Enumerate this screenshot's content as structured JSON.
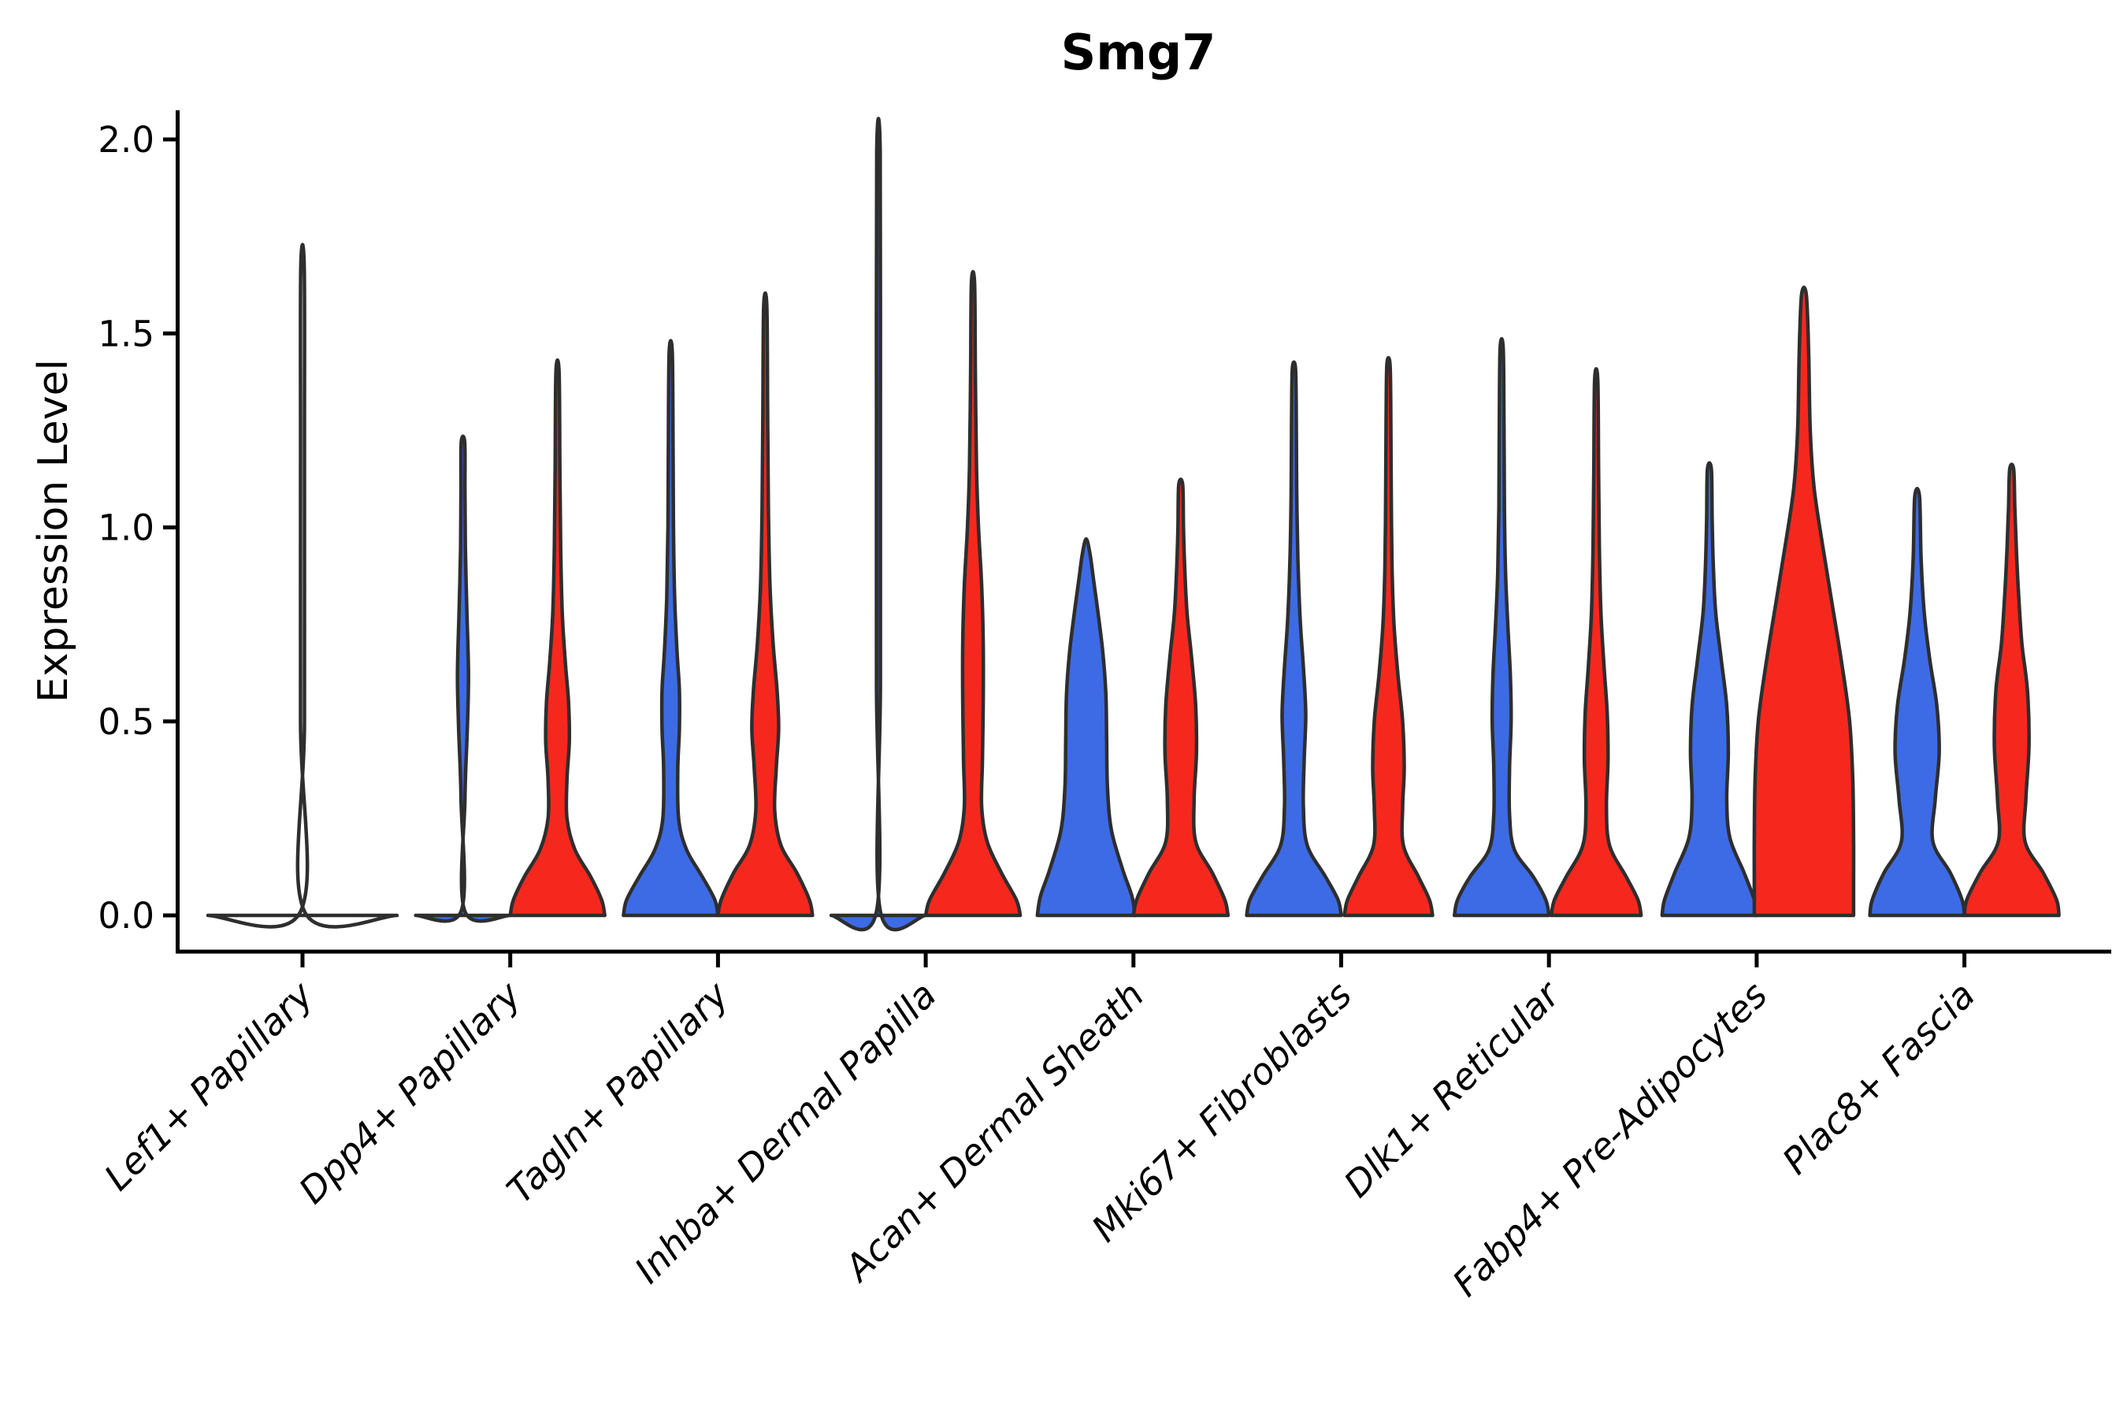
{
  "chart_data": {
    "type": "violin",
    "title": "Smg7",
    "ylabel": "Expression Level",
    "ylim": [
      0,
      2.05
    ],
    "yticks": [
      "0.0",
      "0.5",
      "1.0",
      "1.5",
      "2.0"
    ],
    "ytick_values": [
      0,
      0.5,
      1.0,
      1.5,
      2.0
    ],
    "grid": false,
    "legend": "none",
    "categories": [
      "Lef1+ Papillary",
      "Dpp4+ Papillary",
      "Tagln+ Papillary",
      "Inhba+ Dermal Papilla",
      "Acan+ Dermal Sheath",
      "Mki67+ Fibroblasts",
      "Dlk1+ Reticular",
      "Fabp4+ Pre-Adipocytes",
      "Plac8+ Fascia"
    ],
    "colors": {
      "blue": "#3D6BE5",
      "red": "#F6281E",
      "outline": "#2e2e2e",
      "background": "#ffffff"
    },
    "violins": [
      {
        "category": "Lef1+ Papillary",
        "parts": [
          {
            "color": "none",
            "max_expression": 1.67,
            "profile": [
              [
                0,
                120
              ],
              [
                0.01,
                2.5
              ],
              [
                0.5,
                2.5
              ],
              [
                1.2,
                2.5
              ],
              [
                1.67,
                2.2
              ]
            ]
          }
        ]
      },
      {
        "category": "Dpp4+ Papillary",
        "parts": [
          {
            "color": "blue",
            "max_expression": 1.22,
            "profile": [
              [
                0,
                60
              ],
              [
                0.01,
                2.5
              ],
              [
                0.3,
                2.5
              ],
              [
                0.48,
                5.5
              ],
              [
                0.62,
                7
              ],
              [
                0.78,
                5
              ],
              [
                0.95,
                3
              ],
              [
                1.1,
                2.5
              ],
              [
                1.22,
                2.2
              ]
            ]
          },
          {
            "color": "red",
            "max_expression": 1.4,
            "profile": [
              [
                0,
                60
              ],
              [
                0.04,
                56
              ],
              [
                0.1,
                42
              ],
              [
                0.17,
                22
              ],
              [
                0.25,
                12
              ],
              [
                0.35,
                12
              ],
              [
                0.45,
                15
              ],
              [
                0.55,
                14
              ],
              [
                0.65,
                10
              ],
              [
                0.78,
                6
              ],
              [
                0.95,
                4
              ],
              [
                1.15,
                3
              ],
              [
                1.4,
                2
              ]
            ]
          }
        ]
      },
      {
        "category": "Tagln+ Papillary",
        "parts": [
          {
            "color": "blue",
            "max_expression": 1.45,
            "profile": [
              [
                0,
                60
              ],
              [
                0.04,
                56
              ],
              [
                0.1,
                40
              ],
              [
                0.17,
                20
              ],
              [
                0.25,
                10
              ],
              [
                0.38,
                9
              ],
              [
                0.48,
                11
              ],
              [
                0.58,
                11
              ],
              [
                0.68,
                8
              ],
              [
                0.82,
                5
              ],
              [
                1.0,
                3.5
              ],
              [
                1.2,
                3
              ],
              [
                1.45,
                2
              ]
            ]
          },
          {
            "color": "red",
            "max_expression": 1.57,
            "profile": [
              [
                0,
                60
              ],
              [
                0.04,
                56
              ],
              [
                0.11,
                40
              ],
              [
                0.18,
                20
              ],
              [
                0.27,
                12
              ],
              [
                0.38,
                14
              ],
              [
                0.48,
                17
              ],
              [
                0.58,
                15
              ],
              [
                0.7,
                10
              ],
              [
                0.85,
                6
              ],
              [
                1.05,
                4
              ],
              [
                1.3,
                3
              ],
              [
                1.57,
                2
              ]
            ]
          }
        ]
      },
      {
        "category": "Inhba+ Dermal Papilla",
        "parts": [
          {
            "color": "blue",
            "max_expression": 1.97,
            "profile": [
              [
                0,
                60
              ],
              [
                0.01,
                2.5
              ],
              [
                0.6,
                2.5
              ],
              [
                1.3,
                2.5
              ],
              [
                1.97,
                2.2
              ]
            ]
          },
          {
            "color": "red",
            "max_expression": 1.63,
            "profile": [
              [
                0,
                60
              ],
              [
                0.04,
                55
              ],
              [
                0.11,
                36
              ],
              [
                0.19,
                18
              ],
              [
                0.28,
                11
              ],
              [
                0.4,
                12
              ],
              [
                0.55,
                13
              ],
              [
                0.7,
                13
              ],
              [
                0.85,
                11
              ],
              [
                1.0,
                7
              ],
              [
                1.15,
                4.5
              ],
              [
                1.4,
                3
              ],
              [
                1.63,
                2
              ]
            ]
          }
        ]
      },
      {
        "category": "Acan+ Dermal Sheath",
        "parts": [
          {
            "color": "blue",
            "max_expression": 0.97,
            "profile": [
              [
                0,
                62
              ],
              [
                0.05,
                58
              ],
              [
                0.12,
                46
              ],
              [
                0.22,
                32
              ],
              [
                0.33,
                27
              ],
              [
                0.45,
                26
              ],
              [
                0.57,
                25
              ],
              [
                0.68,
                21
              ],
              [
                0.78,
                15
              ],
              [
                0.87,
                9
              ],
              [
                0.93,
                5
              ],
              [
                0.97,
                0
              ]
            ]
          },
          {
            "color": "red",
            "max_expression": 1.11,
            "profile": [
              [
                0,
                60
              ],
              [
                0.04,
                56
              ],
              [
                0.11,
                40
              ],
              [
                0.19,
                19
              ],
              [
                0.3,
                17
              ],
              [
                0.42,
                20
              ],
              [
                0.54,
                19
              ],
              [
                0.66,
                14
              ],
              [
                0.78,
                8
              ],
              [
                0.9,
                5
              ],
              [
                1.0,
                3.5
              ],
              [
                1.11,
                2.5
              ]
            ]
          }
        ]
      },
      {
        "category": "Mki67+ Fibroblasts",
        "parts": [
          {
            "color": "blue",
            "max_expression": 1.41,
            "profile": [
              [
                0,
                60
              ],
              [
                0.04,
                56
              ],
              [
                0.1,
                40
              ],
              [
                0.18,
                17
              ],
              [
                0.28,
                12
              ],
              [
                0.4,
                13
              ],
              [
                0.52,
                15
              ],
              [
                0.64,
                12
              ],
              [
                0.76,
                8
              ],
              [
                0.92,
                5
              ],
              [
                1.1,
                3.5
              ],
              [
                1.28,
                3
              ],
              [
                1.41,
                2
              ]
            ]
          },
          {
            "color": "red",
            "max_expression": 1.42,
            "profile": [
              [
                0,
                56
              ],
              [
                0.04,
                52
              ],
              [
                0.1,
                38
              ],
              [
                0.18,
                19
              ],
              [
                0.28,
                18
              ],
              [
                0.38,
                20
              ],
              [
                0.5,
                18
              ],
              [
                0.62,
                12
              ],
              [
                0.75,
                7
              ],
              [
                0.9,
                4.5
              ],
              [
                1.1,
                3.5
              ],
              [
                1.28,
                3
              ],
              [
                1.42,
                2
              ]
            ]
          }
        ]
      },
      {
        "category": "Dlk1+ Reticular",
        "parts": [
          {
            "color": "blue",
            "max_expression": 1.46,
            "profile": [
              [
                0,
                60
              ],
              [
                0.04,
                56
              ],
              [
                0.1,
                40
              ],
              [
                0.17,
                16
              ],
              [
                0.26,
                10
              ],
              [
                0.38,
                10
              ],
              [
                0.5,
                12
              ],
              [
                0.62,
                11
              ],
              [
                0.74,
                8
              ],
              [
                0.88,
                5
              ],
              [
                1.05,
                3.5
              ],
              [
                1.25,
                3
              ],
              [
                1.46,
                2
              ]
            ]
          },
          {
            "color": "red",
            "max_expression": 1.38,
            "profile": [
              [
                0,
                57
              ],
              [
                0.04,
                53
              ],
              [
                0.1,
                38
              ],
              [
                0.18,
                17
              ],
              [
                0.28,
                13
              ],
              [
                0.4,
                15
              ],
              [
                0.52,
                14
              ],
              [
                0.64,
                10
              ],
              [
                0.78,
                6
              ],
              [
                0.95,
                4
              ],
              [
                1.15,
                3
              ],
              [
                1.38,
                2
              ]
            ]
          }
        ]
      },
      {
        "category": "Fabp4+ Pre-Adipocytes",
        "parts": [
          {
            "color": "blue",
            "max_expression": 1.15,
            "profile": [
              [
                0,
                60
              ],
              [
                0.04,
                57
              ],
              [
                0.11,
                44
              ],
              [
                0.2,
                26
              ],
              [
                0.3,
                22
              ],
              [
                0.42,
                24
              ],
              [
                0.54,
                22
              ],
              [
                0.66,
                15
              ],
              [
                0.78,
                8
              ],
              [
                0.9,
                5
              ],
              [
                1.02,
                3.5
              ],
              [
                1.15,
                2.5
              ]
            ]
          },
          {
            "color": "red",
            "max_expression": 1.6,
            "profile": [
              [
                0,
                63
              ],
              [
                0.08,
                63
              ],
              [
                0.2,
                63
              ],
              [
                0.35,
                62
              ],
              [
                0.5,
                58
              ],
              [
                0.65,
                48
              ],
              [
                0.8,
                36
              ],
              [
                0.95,
                24
              ],
              [
                1.1,
                13
              ],
              [
                1.25,
                8
              ],
              [
                1.45,
                6
              ],
              [
                1.6,
                3
              ]
            ]
          }
        ]
      },
      {
        "category": "Plac8+ Fascia",
        "parts": [
          {
            "color": "blue",
            "max_expression": 1.08,
            "profile": [
              [
                0,
                60
              ],
              [
                0.04,
                57
              ],
              [
                0.11,
                42
              ],
              [
                0.19,
                20
              ],
              [
                0.3,
                23
              ],
              [
                0.42,
                28
              ],
              [
                0.54,
                25
              ],
              [
                0.66,
                16
              ],
              [
                0.78,
                9
              ],
              [
                0.92,
                5
              ],
              [
                1.08,
                3
              ]
            ]
          },
          {
            "color": "red",
            "max_expression": 1.15,
            "profile": [
              [
                0,
                60
              ],
              [
                0.04,
                57
              ],
              [
                0.11,
                40
              ],
              [
                0.19,
                17
              ],
              [
                0.3,
                18
              ],
              [
                0.44,
                22
              ],
              [
                0.58,
                20
              ],
              [
                0.7,
                13
              ],
              [
                0.82,
                9
              ],
              [
                0.94,
                6
              ],
              [
                1.05,
                4
              ],
              [
                1.15,
                2.5
              ]
            ]
          }
        ]
      }
    ]
  }
}
